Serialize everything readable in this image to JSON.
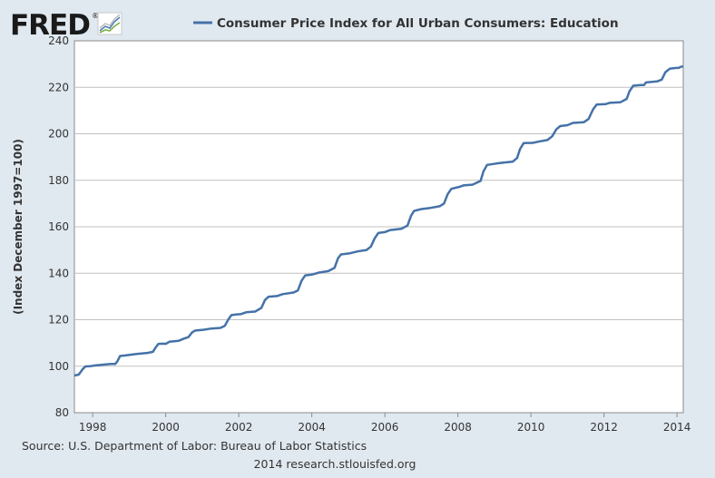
{
  "logo": {
    "text": "FRED",
    "registered": "®"
  },
  "chart_data": {
    "type": "line",
    "title": "Consumer Price Index for All Urban Consumers: Education",
    "ylabel": "(Index December 1997=100)",
    "xlabel": "",
    "xlim": [
      1997.5,
      2014.17
    ],
    "ylim": [
      80,
      240
    ],
    "yticks": [
      80,
      100,
      120,
      140,
      160,
      180,
      200,
      220,
      240
    ],
    "xticks": [
      1998,
      2000,
      2002,
      2004,
      2006,
      2008,
      2010,
      2012,
      2014
    ],
    "grid": true,
    "legend": "top",
    "series": [
      {
        "name": "Consumer Price Index for All Urban Consumers: Education",
        "color": "#4572a7",
        "points": [
          [
            1997.5,
            96.0
          ],
          [
            1997.62,
            96.4
          ],
          [
            1997.72,
            98.6
          ],
          [
            1997.8,
            99.9
          ],
          [
            1997.92,
            100.0
          ],
          [
            1998.05,
            100.3
          ],
          [
            1998.3,
            100.7
          ],
          [
            1998.5,
            101.0
          ],
          [
            1998.62,
            101.0
          ],
          [
            1998.68,
            102.2
          ],
          [
            1998.75,
            104.4
          ],
          [
            1998.92,
            104.7
          ],
          [
            1999.2,
            105.3
          ],
          [
            1999.5,
            105.7
          ],
          [
            1999.65,
            106.2
          ],
          [
            1999.72,
            108.0
          ],
          [
            1999.8,
            109.6
          ],
          [
            1999.92,
            109.7
          ],
          [
            2000.0,
            109.6
          ],
          [
            2000.1,
            110.5
          ],
          [
            2000.35,
            110.9
          ],
          [
            2000.5,
            111.9
          ],
          [
            2000.62,
            112.5
          ],
          [
            2000.72,
            114.5
          ],
          [
            2000.8,
            115.3
          ],
          [
            2001.05,
            115.7
          ],
          [
            2001.25,
            116.2
          ],
          [
            2001.5,
            116.5
          ],
          [
            2001.62,
            117.4
          ],
          [
            2001.72,
            120.3
          ],
          [
            2001.8,
            122.0
          ],
          [
            2001.95,
            122.3
          ],
          [
            2002.05,
            122.4
          ],
          [
            2002.2,
            123.2
          ],
          [
            2002.45,
            123.5
          ],
          [
            2002.62,
            125.1
          ],
          [
            2002.72,
            128.5
          ],
          [
            2002.82,
            129.9
          ],
          [
            2003.05,
            130.2
          ],
          [
            2003.2,
            131.0
          ],
          [
            2003.5,
            131.7
          ],
          [
            2003.62,
            132.6
          ],
          [
            2003.72,
            136.8
          ],
          [
            2003.82,
            139.1
          ],
          [
            2004.0,
            139.4
          ],
          [
            2004.2,
            140.3
          ],
          [
            2004.45,
            140.9
          ],
          [
            2004.62,
            142.3
          ],
          [
            2004.72,
            146.5
          ],
          [
            2004.8,
            148.1
          ],
          [
            2005.05,
            148.6
          ],
          [
            2005.25,
            149.4
          ],
          [
            2005.5,
            150.0
          ],
          [
            2005.62,
            151.5
          ],
          [
            2005.72,
            155.0
          ],
          [
            2005.82,
            157.3
          ],
          [
            2006.0,
            157.7
          ],
          [
            2006.15,
            158.6
          ],
          [
            2006.45,
            159.1
          ],
          [
            2006.62,
            160.5
          ],
          [
            2006.72,
            164.8
          ],
          [
            2006.8,
            166.8
          ],
          [
            2007.0,
            167.6
          ],
          [
            2007.25,
            168.1
          ],
          [
            2007.5,
            168.8
          ],
          [
            2007.62,
            170.0
          ],
          [
            2007.72,
            174.0
          ],
          [
            2007.82,
            176.3
          ],
          [
            2008.05,
            177.2
          ],
          [
            2008.15,
            177.8
          ],
          [
            2008.4,
            178.1
          ],
          [
            2008.62,
            179.7
          ],
          [
            2008.7,
            183.8
          ],
          [
            2008.8,
            186.6
          ],
          [
            2009.05,
            187.2
          ],
          [
            2009.25,
            187.6
          ],
          [
            2009.5,
            188.0
          ],
          [
            2009.62,
            189.6
          ],
          [
            2009.7,
            193.4
          ],
          [
            2009.8,
            196.0
          ],
          [
            2010.05,
            196.1
          ],
          [
            2010.2,
            196.6
          ],
          [
            2010.45,
            197.3
          ],
          [
            2010.58,
            198.9
          ],
          [
            2010.7,
            202.0
          ],
          [
            2010.8,
            203.3
          ],
          [
            2011.0,
            203.7
          ],
          [
            2011.15,
            204.7
          ],
          [
            2011.45,
            205.0
          ],
          [
            2011.58,
            206.4
          ],
          [
            2011.7,
            210.5
          ],
          [
            2011.8,
            212.6
          ],
          [
            2012.05,
            212.8
          ],
          [
            2012.15,
            213.3
          ],
          [
            2012.45,
            213.6
          ],
          [
            2012.62,
            215.0
          ],
          [
            2012.7,
            218.3
          ],
          [
            2012.8,
            220.7
          ],
          [
            2013.0,
            221.0
          ],
          [
            2013.1,
            221.0
          ],
          [
            2013.15,
            222.1
          ],
          [
            2013.45,
            222.5
          ],
          [
            2013.58,
            223.3
          ],
          [
            2013.68,
            226.5
          ],
          [
            2013.8,
            228.0
          ],
          [
            2013.95,
            228.3
          ],
          [
            2014.05,
            228.4
          ],
          [
            2014.1,
            228.8
          ],
          [
            2014.17,
            229.0
          ]
        ]
      }
    ]
  },
  "footer": {
    "source": "Source: U.S. Department of Labor: Bureau of Labor Statistics",
    "credit": "2014 research.stlouisfed.org"
  }
}
